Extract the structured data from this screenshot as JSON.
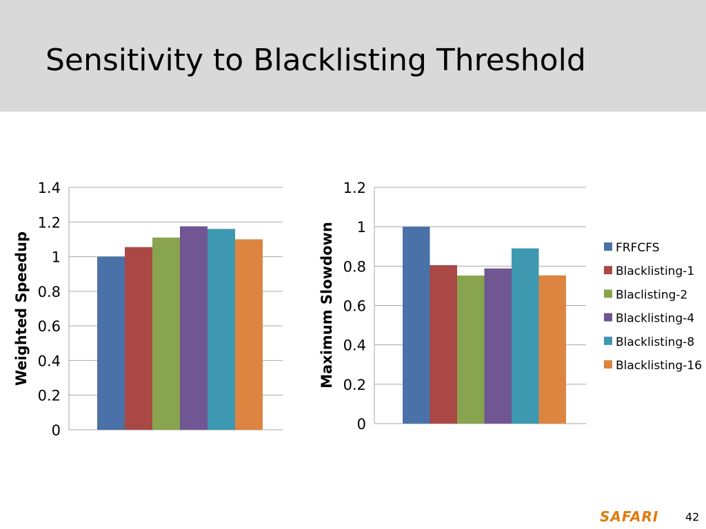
{
  "slide": {
    "title": "Sensitivity to Blacklisting Threshold",
    "logo": "SAFARI",
    "page_number": "42"
  },
  "colors": {
    "title_bg": "#d9d9d9",
    "logo": "#e07b0e",
    "grid": "#a6a6a6"
  },
  "legend": {
    "entries": [
      {
        "label": "FRFCFS",
        "color": "#4a72a8"
      },
      {
        "label": "Blacklisting-1",
        "color": "#a94844"
      },
      {
        "label": "Blaclisting-2",
        "color": "#88a44f"
      },
      {
        "label": "Blacklisting-4",
        "color": "#705693"
      },
      {
        "label": "Blacklisting-8",
        "color": "#3e98b0"
      },
      {
        "label": "Blacklisting-16",
        "color": "#dd8440"
      }
    ]
  },
  "chart_data": [
    {
      "type": "bar",
      "title": "",
      "xlabel": "",
      "ylabel": "Weighted Speedup",
      "ylim": [
        0,
        1.4
      ],
      "yticks": [
        "0",
        "0.2",
        "0.4",
        "0.6",
        "0.8",
        "1",
        "1.2",
        "1.4"
      ],
      "grid": true,
      "categories": [
        ""
      ],
      "series": [
        {
          "name": "FRFCFS",
          "values": [
            1.0
          ]
        },
        {
          "name": "Blacklisting-1",
          "values": [
            1.055
          ]
        },
        {
          "name": "Blaclisting-2",
          "values": [
            1.11
          ]
        },
        {
          "name": "Blacklisting-4",
          "values": [
            1.175
          ]
        },
        {
          "name": "Blacklisting-8",
          "values": [
            1.16
          ]
        },
        {
          "name": "Blacklisting-16",
          "values": [
            1.1
          ]
        }
      ]
    },
    {
      "type": "bar",
      "title": "",
      "xlabel": "",
      "ylabel": "Maximum Slowdown",
      "ylim": [
        0,
        1.2
      ],
      "yticks": [
        "0",
        "0.2",
        "0.4",
        "0.6",
        "0.8",
        "1",
        "1.2"
      ],
      "grid": true,
      "categories": [
        ""
      ],
      "series": [
        {
          "name": "FRFCFS",
          "values": [
            1.0
          ]
        },
        {
          "name": "Blacklisting-1",
          "values": [
            0.805
          ]
        },
        {
          "name": "Blaclisting-2",
          "values": [
            0.752
          ]
        },
        {
          "name": "Blacklisting-4",
          "values": [
            0.788
          ]
        },
        {
          "name": "Blacklisting-8",
          "values": [
            0.89
          ]
        },
        {
          "name": "Blacklisting-16",
          "values": [
            0.753
          ]
        }
      ],
      "legend_position": "right"
    }
  ]
}
